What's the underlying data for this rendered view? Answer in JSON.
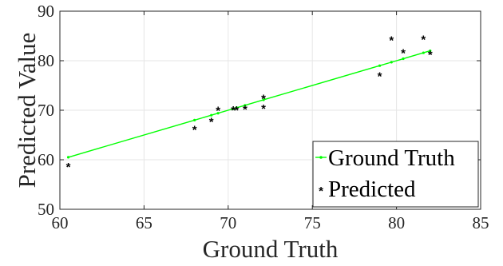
{
  "chart_data": {
    "type": "scatter",
    "title": "",
    "xlabel": "Ground Truth",
    "ylabel": "Predicted Value",
    "xlim": [
      60,
      85
    ],
    "ylim": [
      50,
      90
    ],
    "xticks": [
      "60",
      "65",
      "70",
      "75",
      "80",
      "85"
    ],
    "yticks": [
      "50",
      "60",
      "70",
      "80",
      "90"
    ],
    "grid": true,
    "legend_position": "bottom-right",
    "series": [
      {
        "name": "Ground Truth",
        "kind": "line",
        "color": "#00ff00",
        "points": [
          [
            60.5,
            60.5
          ],
          [
            68.0,
            68.0
          ],
          [
            69.0,
            69.0
          ],
          [
            69.4,
            69.4
          ],
          [
            70.3,
            70.3
          ],
          [
            70.5,
            70.5
          ],
          [
            71.0,
            71.0
          ],
          [
            72.1,
            72.1
          ],
          [
            79.0,
            79.0
          ],
          [
            79.7,
            79.7
          ],
          [
            80.4,
            80.4
          ],
          [
            81.6,
            81.6
          ],
          [
            82.0,
            82.0
          ]
        ]
      },
      {
        "name": "Predicted",
        "kind": "scatter",
        "color": "#000000",
        "points": [
          [
            60.5,
            58.7
          ],
          [
            68.0,
            66.2
          ],
          [
            69.0,
            67.8
          ],
          [
            69.4,
            70.1
          ],
          [
            70.3,
            70.2
          ],
          [
            70.5,
            70.2
          ],
          [
            71.0,
            70.3
          ],
          [
            72.1,
            72.5
          ],
          [
            72.1,
            70.5
          ],
          [
            79.0,
            77.0
          ],
          [
            79.7,
            84.3
          ],
          [
            80.4,
            81.7
          ],
          [
            81.6,
            84.4
          ],
          [
            82.0,
            81.4
          ]
        ]
      }
    ]
  }
}
